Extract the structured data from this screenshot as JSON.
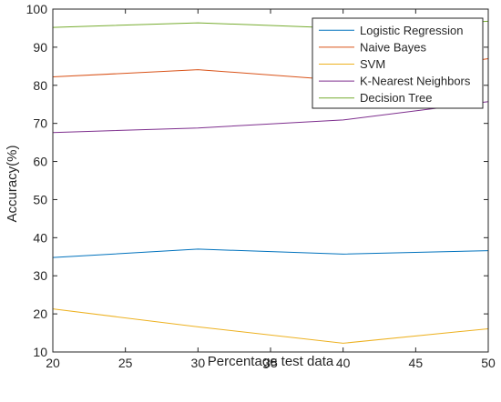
{
  "chart_data": {
    "type": "line",
    "title": "",
    "xlabel": "Percentage test data",
    "ylabel": "Accuracy(%)",
    "x": [
      20,
      30,
      40,
      50
    ],
    "xlim": [
      20,
      50
    ],
    "ylim": [
      10,
      100
    ],
    "xticks": [
      "20",
      "25",
      "30",
      "35",
      "40",
      "45",
      "50"
    ],
    "yticks": [
      "10",
      "20",
      "30",
      "40",
      "50",
      "60",
      "70",
      "80",
      "90",
      "100"
    ],
    "grid": false,
    "legend_position": "top-right",
    "series": [
      {
        "name": "Logistic Regression",
        "values": [
          34.8,
          37.0,
          35.7,
          36.6
        ],
        "color": "#0072BD"
      },
      {
        "name": "Naive Bayes",
        "values": [
          82.2,
          84.1,
          81.3,
          87.0
        ],
        "color": "#D95319"
      },
      {
        "name": "SVM",
        "values": [
          21.3,
          16.6,
          12.3,
          16.1
        ],
        "color": "#EDB120"
      },
      {
        "name": "K-Nearest Neighbors",
        "values": [
          67.6,
          68.8,
          70.9,
          75.7
        ],
        "color": "#7E2F8E"
      },
      {
        "name": "Decision Tree",
        "values": [
          95.2,
          96.4,
          95.0,
          96.8
        ],
        "color": "#77AC30"
      }
    ]
  }
}
